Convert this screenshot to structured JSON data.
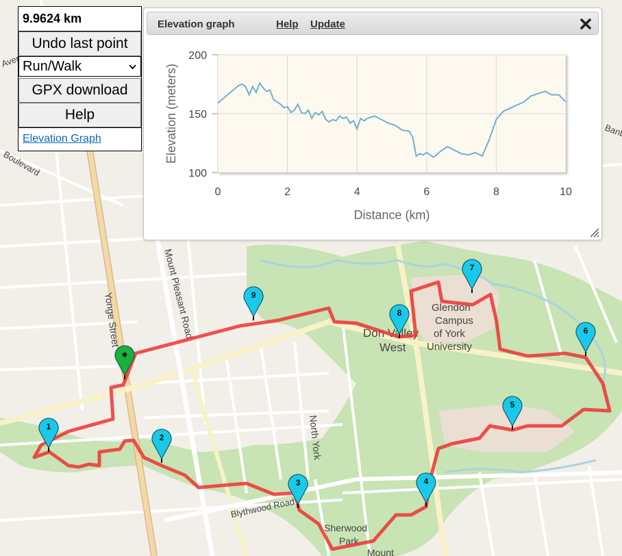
{
  "distance": "9.9624 km",
  "panel": {
    "undo_label": "Undo last point",
    "mode_value": "Run/Walk",
    "gpx_label": "GPX download",
    "help_label": "Help",
    "elevation_link": "Elevation Graph"
  },
  "dialog": {
    "title": "Elevation graph",
    "help_link": "Help",
    "update_link": "Update",
    "close_icon": "close-icon"
  },
  "chart_data": {
    "type": "line",
    "title": "",
    "xlabel": "Distance (km)",
    "ylabel": "Elevation (meters)",
    "xlim": [
      0,
      10
    ],
    "ylim": [
      100,
      200
    ],
    "xticks": [
      0,
      2,
      4,
      6,
      8,
      10
    ],
    "yticks": [
      100,
      150,
      200
    ],
    "grid": true,
    "colors": {
      "line": "#6bb2cf",
      "plot_bg": "#fdf9ee"
    },
    "series": [
      {
        "x": [
          0,
          0.2,
          0.4,
          0.6,
          0.7,
          0.8,
          0.9,
          1.0,
          1.1,
          1.2,
          1.3,
          1.4,
          1.5,
          1.6,
          1.7,
          1.8,
          1.9,
          2.0,
          2.1,
          2.2,
          2.3,
          2.4,
          2.5,
          2.6,
          2.7,
          2.8,
          2.9,
          3.0,
          3.1,
          3.2,
          3.3,
          3.4,
          3.5,
          3.6,
          3.7,
          3.8,
          3.9,
          4.0,
          4.1,
          4.2,
          4.3,
          4.5,
          4.7,
          4.9,
          5.1,
          5.3,
          5.5,
          5.6,
          5.7,
          5.8,
          5.9,
          6.0,
          6.2,
          6.4,
          6.6,
          6.8,
          7.0,
          7.2,
          7.4,
          7.6,
          7.8,
          8.0,
          8.2,
          8.5,
          8.8,
          9.0,
          9.2,
          9.4,
          9.6,
          9.8,
          10.0
        ],
        "y": [
          159,
          164,
          169,
          174,
          175,
          173,
          166,
          173,
          168,
          176,
          172,
          169,
          170,
          162,
          160,
          158,
          155,
          156,
          151,
          153,
          158,
          151,
          150,
          153,
          146,
          151,
          149,
          152,
          145,
          143,
          145,
          144,
          148,
          146,
          147,
          142,
          144,
          137,
          146,
          144,
          146,
          148,
          145,
          142,
          140,
          136,
          135,
          130,
          114,
          116,
          115,
          117,
          113,
          118,
          122,
          119,
          116,
          115,
          117,
          114,
          128,
          145,
          152,
          156,
          160,
          165,
          167,
          169,
          166,
          166,
          160
        ]
      }
    ]
  },
  "map": {
    "labels": {
      "yonge": "Yonge Street",
      "mount_pleasant": "Mount Pleasant Road",
      "blythwood": "Blythwood Road",
      "north_york": "North York",
      "don_valley_1": "Don Valley",
      "don_valley_2": "West",
      "glendon_1": "Glendon",
      "glendon_2": "Campus",
      "glendon_3": "of York",
      "glendon_4": "University",
      "sherwood_1": "Sherwood",
      "sherwood_2": "Park",
      "boulevard": "Boulevard",
      "avenue": "Avenue",
      "banbury": "Banbury",
      "mount": "Mount"
    },
    "markers": [
      "1",
      "2",
      "3",
      "4",
      "5",
      "6",
      "7",
      "8",
      "9"
    ],
    "colors": {
      "route": "#ee3333",
      "marker": "#19c9e9",
      "start": "#17b13b"
    }
  }
}
